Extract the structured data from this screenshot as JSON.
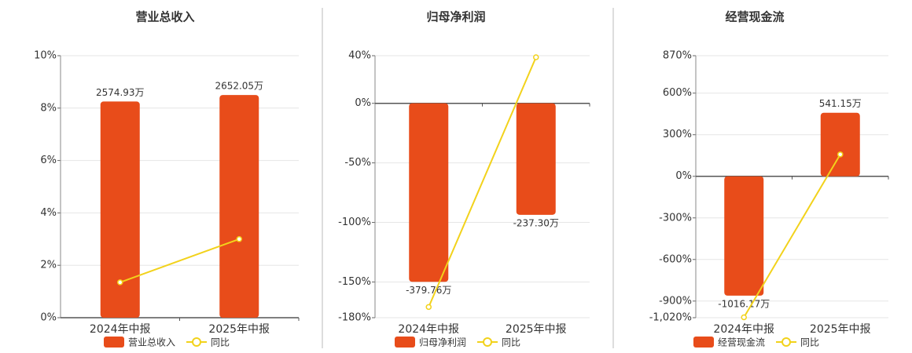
{
  "chart_data": [
    {
      "type": "bar",
      "title": "营业总收入",
      "categories": [
        "2024年中报",
        "2025年中报"
      ],
      "series": [
        {
          "name": "营业总收入",
          "color": "#e84c1a",
          "axis": "y2",
          "values": [
            2574.93,
            2652.05
          ],
          "value_labels": [
            "2574.93万",
            "2652.05万"
          ]
        },
        {
          "name": "同比",
          "color": "#f2d21b",
          "type": "line",
          "values": [
            1.35,
            3.0
          ]
        }
      ],
      "ylim": [
        0,
        10
      ],
      "yticks": [
        {
          "value": 0,
          "label": "0%"
        },
        {
          "value": 2,
          "label": "2%"
        },
        {
          "value": 4,
          "label": "4%"
        },
        {
          "value": 6,
          "label": "6%"
        },
        {
          "value": 8,
          "label": "8%"
        },
        {
          "value": 10,
          "label": "10%"
        }
      ],
      "y2lim": [
        0,
        3120
      ],
      "grid": true
    },
    {
      "type": "bar",
      "title": "归母净利润",
      "categories": [
        "2024年中报",
        "2025年中报"
      ],
      "series": [
        {
          "name": "归母净利润",
          "color": "#e84c1a",
          "axis": "y2",
          "values": [
            -379.76,
            -237.3
          ],
          "value_labels": [
            "-379.76万",
            "-237.30万"
          ]
        },
        {
          "name": "同比",
          "color": "#f2d21b",
          "type": "line",
          "values": [
            -171,
            38.7
          ]
        }
      ],
      "ylim": [
        -180,
        40
      ],
      "yticks": [
        {
          "value": -180,
          "label": "-180%"
        },
        {
          "value": -150,
          "label": "-150%"
        },
        {
          "value": -100,
          "label": "-100%"
        },
        {
          "value": -50,
          "label": "-50%"
        },
        {
          "value": 0,
          "label": "0%"
        },
        {
          "value": 40,
          "label": "40%"
        }
      ],
      "y2lim": [
        -456,
        101
      ],
      "grid": true
    },
    {
      "type": "bar",
      "title": "经营现金流",
      "categories": [
        "2024年中报",
        "2025年中报"
      ],
      "series": [
        {
          "name": "经营现金流",
          "color": "#e84c1a",
          "axis": "y2",
          "values": [
            -1016.17,
            541.15
          ],
          "value_labels": [
            "-1016.17万",
            "541.15万"
          ]
        },
        {
          "name": "同比",
          "color": "#f2d21b",
          "type": "line",
          "values": [
            -1017,
            158
          ]
        }
      ],
      "ylim": [
        -1020,
        870
      ],
      "yticks": [
        {
          "value": -1020,
          "label": "-1,020%"
        },
        {
          "value": -900,
          "label": "-900%"
        },
        {
          "value": -600,
          "label": "-600%"
        },
        {
          "value": -300,
          "label": "-300%"
        },
        {
          "value": 0,
          "label": "0%"
        },
        {
          "value": 300,
          "label": "300%"
        },
        {
          "value": 600,
          "label": "600%"
        },
        {
          "value": 870,
          "label": "870%"
        }
      ],
      "y2lim": [
        -1204,
        1027
      ],
      "grid": true
    }
  ]
}
